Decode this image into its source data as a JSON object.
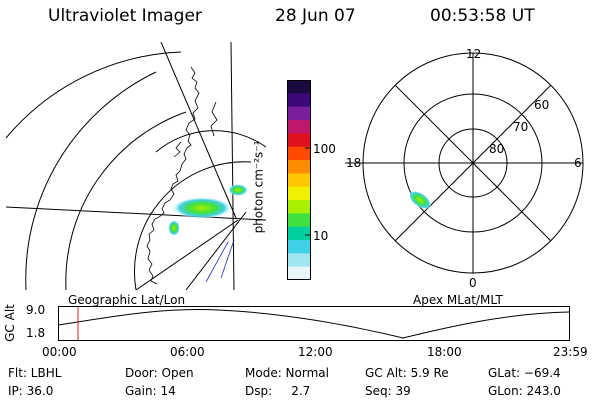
{
  "header": {
    "title": "Ultraviolet Imager",
    "date": "28 Jun 07",
    "time": "00:53:58 UT"
  },
  "map_left": {
    "label": "Geographic Lat/Lon"
  },
  "map_right": {
    "label": "Apex MLat/MLT",
    "mlt_labels": {
      "top": "12",
      "left": "18",
      "right": "6",
      "bottom": "0"
    },
    "lat_labels": [
      "60",
      "70",
      "80"
    ]
  },
  "colorbar": {
    "unit_label": "photon cm⁻²s⁻¹",
    "ticks": [
      "100",
      "10"
    ],
    "colors": [
      "#1a0a40",
      "#3c0a78",
      "#7a1e9c",
      "#c0186a",
      "#e0101e",
      "#ff4a00",
      "#ff8c00",
      "#ffc800",
      "#f0f000",
      "#a8f000",
      "#40e040",
      "#00d0a0",
      "#40d0e8",
      "#a0e6f0",
      "#e6f6fa"
    ]
  },
  "altitude_plot": {
    "ylabel": "GC Alt",
    "yticks": [
      "9.0",
      "1.8"
    ],
    "xticks": [
      "00:00",
      "06:00",
      "12:00",
      "18:00",
      "23:59"
    ],
    "current_time_color": "#d02020"
  },
  "info": {
    "flt": "Flt: LBHL",
    "ip": "IP: 36.0",
    "door": "Door: Open",
    "gain": "Gain: 14",
    "mode": "Mode: Normal",
    "dsp": "Dsp:     2.7",
    "gcalt": "GC Alt: 5.9 Re",
    "seq": "Seq: 39",
    "glat": "GLat: −69.4",
    "glon": "GLon: 243.0"
  }
}
